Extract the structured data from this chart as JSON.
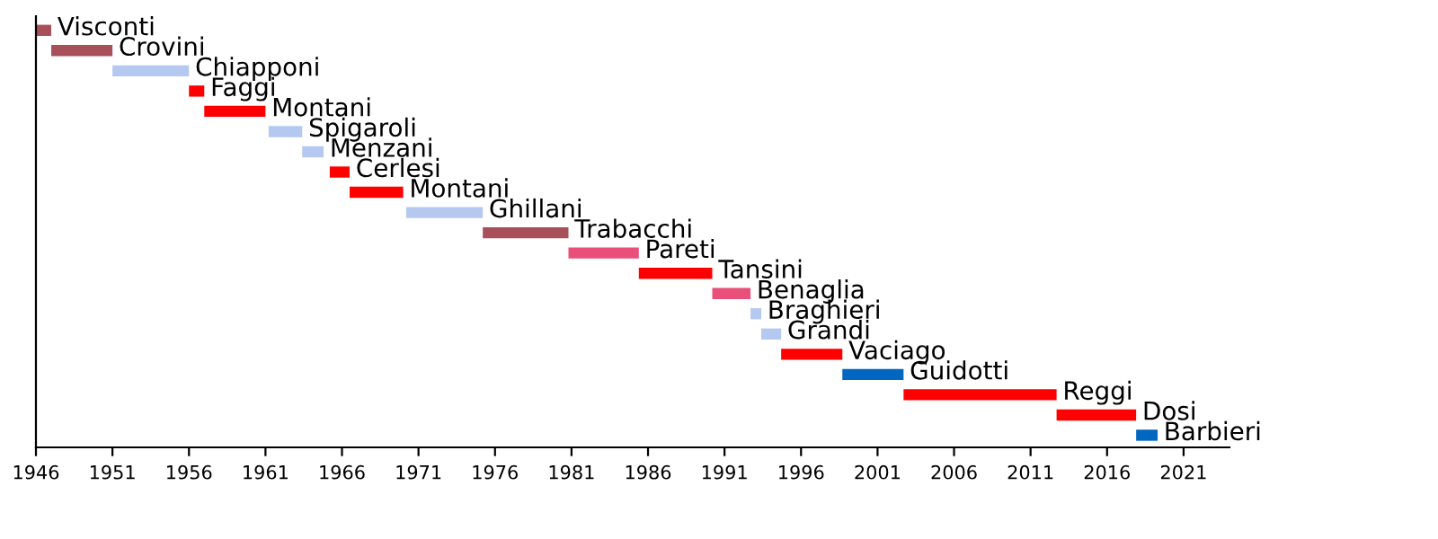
{
  "chart_data": {
    "type": "bar",
    "orientation": "horizontal",
    "categories": [
      "Visconti",
      "Crovini",
      "Chiapponi",
      "Faggi",
      "Montani",
      "Spigaroli",
      "Menzani",
      "Cerlesi",
      "Montani",
      "Ghillani",
      "Trabacchi",
      "Pareti",
      "Tansini",
      "Benaglia",
      "Braghieri",
      "Grandi",
      "Vaciago",
      "Guidotti",
      "Reggi",
      "Dosi",
      "Barbieri"
    ],
    "base": [
      1946,
      1947,
      1951,
      1956,
      1957,
      1961.2,
      1963.4,
      1965.2,
      1966.5,
      1970.2,
      1975.2,
      1980.8,
      1985.4,
      1990.2,
      1992.7,
      1993.4,
      1994.7,
      1998.7,
      2002.7,
      2012.7,
      2017.9
    ],
    "values": [
      1,
      4,
      5,
      1,
      4,
      2.2,
      1.4,
      1.3,
      3.5,
      5,
      5.6,
      4.6,
      4.8,
      2.5,
      0.7,
      1.3,
      4,
      4,
      10,
      5.2,
      1.4
    ],
    "colors": [
      "#a8505a",
      "#a8505a",
      "#b4c8f0",
      "#ff0000",
      "#ff0000",
      "#b4c8f0",
      "#b4c8f0",
      "#ff0000",
      "#ff0000",
      "#b4c8f0",
      "#a8505a",
      "#e8507a",
      "#ff0000",
      "#e8507a",
      "#b4c8f0",
      "#b4c8f0",
      "#ff0000",
      "#0066c0",
      "#ff0000",
      "#ff0000",
      "#0066c0"
    ],
    "xlim": [
      1946,
      2024
    ],
    "xticks": [
      1946,
      1951,
      1956,
      1961,
      1966,
      1971,
      1976,
      1981,
      1986,
      1991,
      1996,
      2001,
      2006,
      2011,
      2016,
      2021
    ],
    "grid": false,
    "legend": false
  }
}
